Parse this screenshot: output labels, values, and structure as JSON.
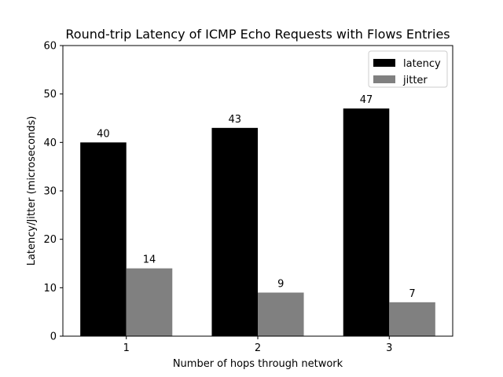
{
  "chart_data": {
    "type": "bar",
    "title": "Round-trip Latency of ICMP Echo Requests with Flows Entries",
    "xlabel": "Number of hops through network",
    "ylabel": "Latency/Jitter (microseconds)",
    "categories": [
      "1",
      "2",
      "3"
    ],
    "series": [
      {
        "name": "latency",
        "values": [
          40,
          43,
          47
        ],
        "color": "#000000"
      },
      {
        "name": "jitter",
        "values": [
          14,
          9,
          7
        ],
        "color": "#808080"
      }
    ],
    "ylim": [
      0,
      60
    ],
    "yticks": [
      0,
      10,
      20,
      30,
      40,
      50,
      60
    ],
    "grid": false,
    "legend_position": "top-right"
  }
}
